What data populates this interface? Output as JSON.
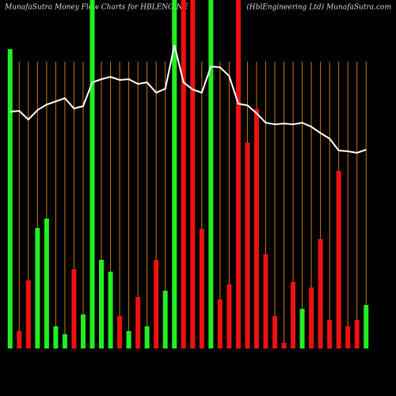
{
  "chart_data": {
    "type": "bar",
    "title": "MunafaSutra  Money Flow  Charts for HBLENGINE",
    "subtitle": "(HblEngineering Ltd) MunafaSutra.com",
    "ylim": [
      0,
      440
    ],
    "grid_color": "#c87a10",
    "grid_top": 362,
    "values": [
      378,
      22,
      86,
      152,
      164,
      28,
      18,
      100,
      43,
      440,
      112,
      97,
      41,
      22,
      65,
      28,
      112,
      73,
      440,
      440,
      440,
      151,
      440,
      62,
      81,
      440,
      260,
      302,
      119,
      41,
      7,
      84,
      50,
      77,
      138,
      36,
      224,
      28,
      36,
      55
    ],
    "bar_colors": [
      "#22ee22",
      "#ee1111",
      "#ee1111",
      "#22ee22",
      "#22ee22",
      "#22ee22",
      "#22ee22",
      "#ee1111",
      "#22ee22",
      "#22ee22",
      "#22ee22",
      "#22ee22",
      "#ee1111",
      "#22ee22",
      "#ee1111",
      "#22ee22",
      "#ee1111",
      "#22ee22",
      "#22ee22",
      "#ee1111",
      "#ee1111",
      "#ee1111",
      "#22ee22",
      "#ee1111",
      "#ee1111",
      "#ee1111",
      "#ee1111",
      "#ee1111",
      "#ee1111",
      "#ee1111",
      "#ee1111",
      "#ee1111",
      "#22ee22",
      "#ee1111",
      "#ee1111",
      "#ee1111",
      "#ee1111",
      "#ee1111",
      "#ee1111",
      "#22ee22"
    ],
    "line": {
      "color": "#ffffff",
      "values": [
        299,
        300,
        289,
        301,
        308,
        312,
        316,
        303,
        306,
        336,
        340,
        343,
        339,
        340,
        334,
        336,
        323,
        328,
        383,
        336,
        327,
        323,
        356,
        355,
        344,
        309,
        307,
        297,
        285,
        283,
        284,
        283,
        285,
        280,
        272,
        265,
        250,
        249,
        247,
        251
      ]
    }
  }
}
